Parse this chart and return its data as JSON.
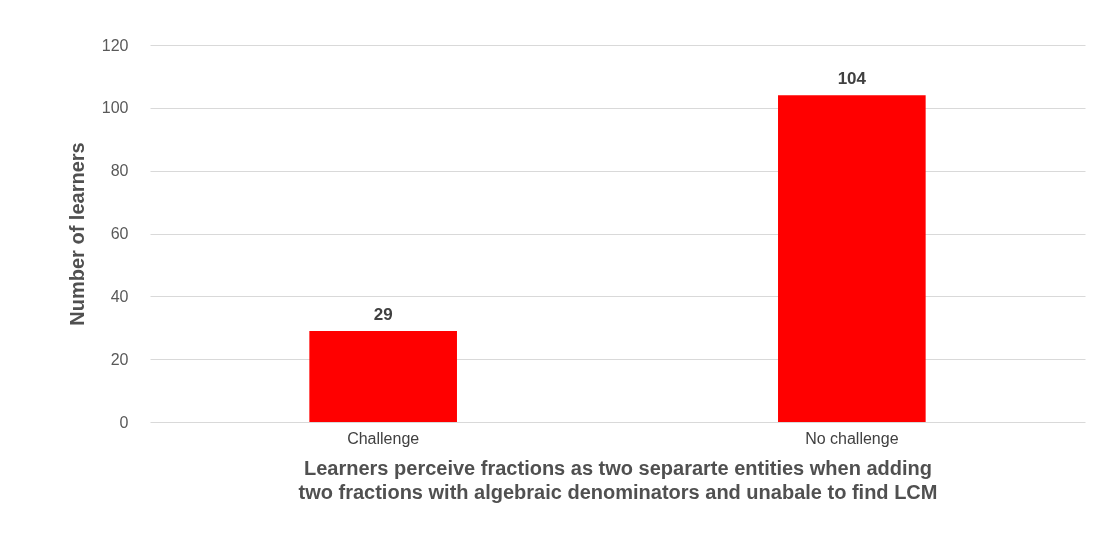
{
  "chart_data": {
    "type": "bar",
    "categories": [
      "Challenge",
      "No challenge"
    ],
    "values": [
      29,
      104
    ],
    "color": "#ff0000",
    "ylim": [
      0,
      120
    ],
    "yticks": [
      0,
      20,
      40,
      60,
      80,
      100,
      120
    ],
    "grid": "y",
    "data_labels": true,
    "ylabel": "Number of learners",
    "xlabel": "Learners perceive fractions as two separarte entities when adding\ntwo fractions with algebraic denominators and unabale to find LCM"
  }
}
